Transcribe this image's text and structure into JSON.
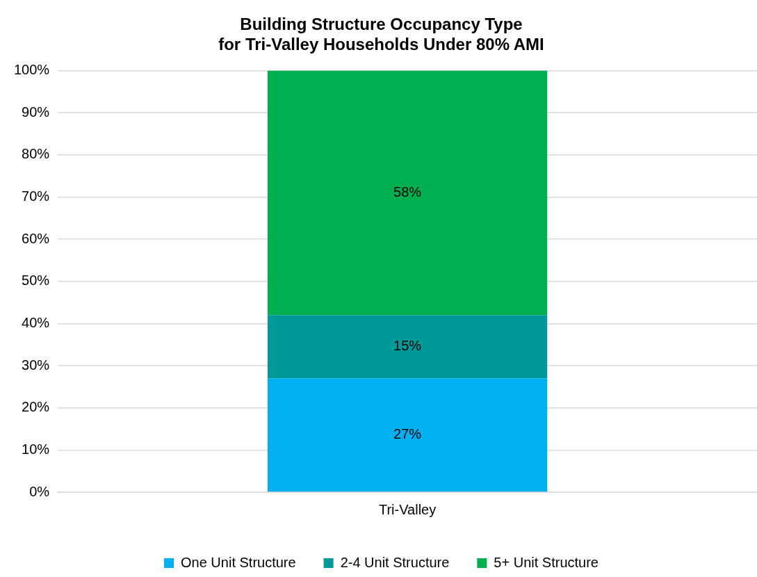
{
  "chart_data": {
    "type": "bar",
    "title": "Building Structure Occupancy Type\nfor Tri-Valley Households Under 80% AMI",
    "categories": [
      "Tri-Valley"
    ],
    "series": [
      {
        "name": "One Unit Structure",
        "color": "#00b0f0",
        "values": [
          27
        ],
        "value_labels": [
          "27%"
        ]
      },
      {
        "name": "2-4 Unit Structure",
        "color": "#009999",
        "values": [
          15
        ],
        "value_labels": [
          "15%"
        ]
      },
      {
        "name": "5+ Unit Structure",
        "color": "#00b050",
        "values": [
          58
        ],
        "value_labels": [
          "58%"
        ]
      }
    ],
    "stacked": true,
    "ylim": [
      0,
      100
    ],
    "yticks": [
      {
        "value": 0,
        "label": "0%"
      },
      {
        "value": 10,
        "label": "10%"
      },
      {
        "value": 20,
        "label": "20%"
      },
      {
        "value": 30,
        "label": "30%"
      },
      {
        "value": 40,
        "label": "40%"
      },
      {
        "value": 50,
        "label": "50%"
      },
      {
        "value": 60,
        "label": "60%"
      },
      {
        "value": 70,
        "label": "70%"
      },
      {
        "value": 80,
        "label": "80%"
      },
      {
        "value": 90,
        "label": "90%"
      },
      {
        "value": 100,
        "label": "100%"
      }
    ],
    "grid": "y",
    "legend": "bottom"
  }
}
